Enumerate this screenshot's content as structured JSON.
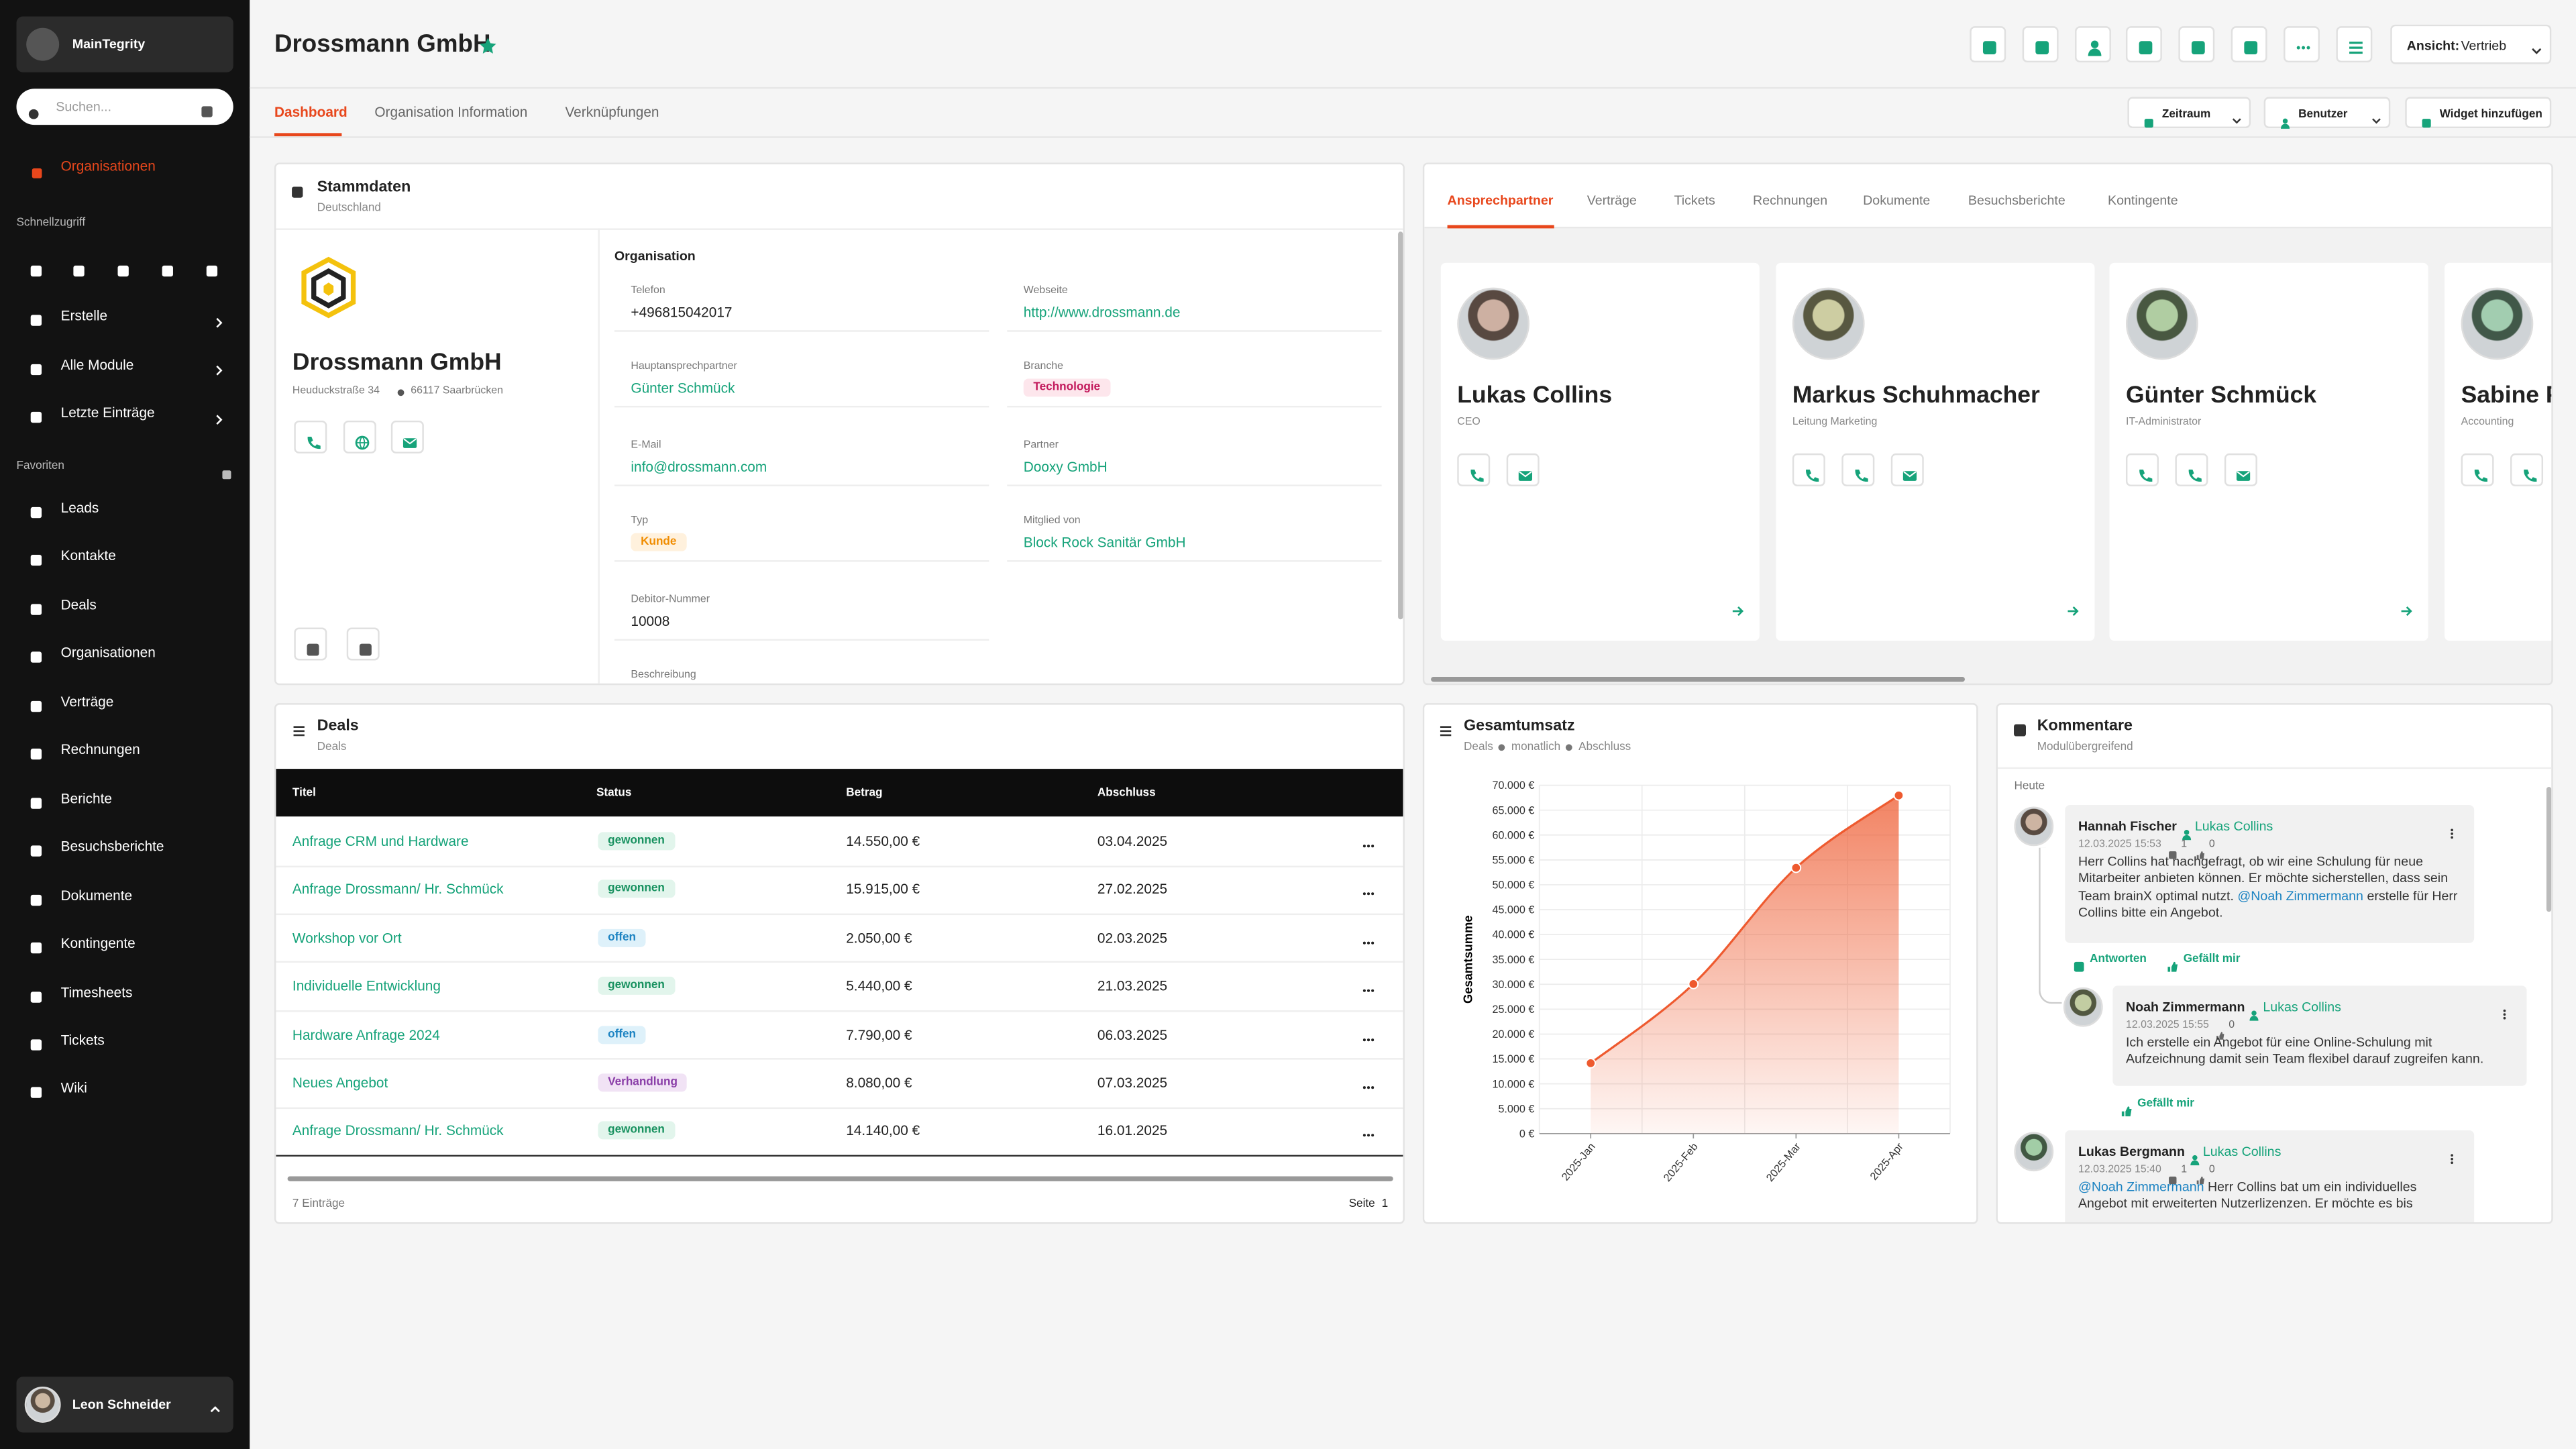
{
  "sidebar": {
    "brand": "MainTegrity",
    "search": "Suchen...",
    "current": "Organisationen",
    "quick_title": "Schnellzugriff",
    "quick_menu": [
      "Erstelle",
      "Alle Module",
      "Letzte Einträge"
    ],
    "favorites_title": "Favoriten",
    "favorites": [
      "Leads",
      "Kontakte",
      "Deals",
      "Organisationen",
      "Verträge",
      "Rechnungen",
      "Berichte",
      "Besuchsberichte",
      "Dokumente",
      "Kontingente",
      "Timesheets",
      "Tickets",
      "Wiki"
    ],
    "user": "Leon Schneider"
  },
  "header": {
    "title": "Drossmann GmbH",
    "view_label": "Ansicht:",
    "view": "Vertrieb",
    "tabs": [
      "Dashboard",
      "Organisation Information",
      "Verknüpfungen"
    ],
    "filters": [
      "Zeitraum",
      "Benutzer",
      "Widget hinzufügen"
    ]
  },
  "stammdaten": {
    "title": "Stammdaten",
    "subtitle": "Deutschland",
    "name": "Drossmann GmbH",
    "street": "Heuduckstraße 34",
    "city": "66117 Saarbrücken",
    "section": "Organisation",
    "fields": [
      {
        "label": "Telefon",
        "value": "+496815042017"
      },
      {
        "label": "Webseite",
        "value": "http://www.drossmann.de"
      },
      {
        "label": "Hauptansprechpartner",
        "value": "Günter Schmück"
      },
      {
        "label": "Branche",
        "value": "Technologie"
      },
      {
        "label": "E-Mail",
        "value": "info@drossmann.com"
      },
      {
        "label": "Partner",
        "value": "Dooxy GmbH"
      },
      {
        "label": "Typ",
        "value": "Kunde"
      },
      {
        "label": "Mitglied von",
        "value": "Block Rock Sanitär GmbH"
      },
      {
        "label": "Debitor-Nummer",
        "value": "10008"
      },
      {
        "label": "Beschreibung"
      }
    ]
  },
  "contacts": {
    "tabs": [
      "Ansprechpartner",
      "Verträge",
      "Tickets",
      "Rechnungen",
      "Dokumente",
      "Besuchsberichte",
      "Kontingente"
    ],
    "people": [
      {
        "name": "Lukas Collins",
        "role": "CEO"
      },
      {
        "name": "Markus Schuhmacher",
        "role": "Leitung Marketing"
      },
      {
        "name": "Günter Schmück",
        "role": "IT-Administrator"
      },
      {
        "name": "Sabine P",
        "role": "Accounting"
      }
    ]
  },
  "deals": {
    "title": "Deals",
    "subtitle": "Deals",
    "columns": [
      "Titel",
      "Status",
      "Betrag",
      "Abschluss"
    ],
    "rows": [
      [
        "Anfrage CRM und Hardware",
        "gewonnen",
        "14.550,00 €",
        "03.04.2025"
      ],
      [
        "Anfrage Drossmann/ Hr. Schmück",
        "gewonnen",
        "15.915,00 €",
        "27.02.2025"
      ],
      [
        "Workshop vor Ort",
        "offen",
        "2.050,00 €",
        "02.03.2025"
      ],
      [
        "Individuelle Entwicklung",
        "gewonnen",
        "5.440,00 €",
        "21.03.2025"
      ],
      [
        "Hardware Anfrage 2024",
        "offen",
        "7.790,00 €",
        "06.03.2025"
      ],
      [
        "Neues Angebot",
        "Verhandlung",
        "8.080,00 €",
        "07.03.2025"
      ],
      [
        "Anfrage Drossmann/ Hr. Schmück",
        "gewonnen",
        "14.140,00 €",
        "16.01.2025"
      ]
    ],
    "count": "7 Einträge",
    "page_label": "Seite",
    "page": 1
  },
  "chart_data": {
    "type": "line",
    "title": "Gesamtumsatz",
    "subtitle": [
      "Deals",
      "monatlich",
      "Abschluss"
    ],
    "ylabel": "Gesamtsumme",
    "categories": [
      "2025-Jan",
      "2025-Feb",
      "2025-Mar",
      "2025-Apr"
    ],
    "values": [
      14140,
      30055,
      53415,
      67965
    ],
    "color": "#ee5a2f",
    "grid": true,
    "ylim": [
      0,
      70000
    ],
    "yticks": [
      {
        "value": 0,
        "label": "0 €"
      },
      {
        "value": 5000,
        "label": "5.000 €"
      },
      {
        "value": 10000,
        "label": "10.000 €"
      },
      {
        "value": 15000,
        "label": "15.000 €"
      },
      {
        "value": 20000,
        "label": "20.000 €"
      },
      {
        "value": 25000,
        "label": "25.000 €"
      },
      {
        "value": 30000,
        "label": "30.000 €"
      },
      {
        "value": 35000,
        "label": "35.000 €"
      },
      {
        "value": 40000,
        "label": "40.000 €"
      },
      {
        "value": 45000,
        "label": "45.000 €"
      },
      {
        "value": 50000,
        "label": "50.000 €"
      },
      {
        "value": 55000,
        "label": "55.000 €"
      },
      {
        "value": 60000,
        "label": "60.000 €"
      },
      {
        "value": 65000,
        "label": "65.000 €"
      },
      {
        "value": 70000,
        "label": "70.000 €"
      }
    ]
  },
  "comments": {
    "title": "Kommentare",
    "subtitle": "Modulübergreifend",
    "day": "Heute",
    "items": [
      {
        "author": "Hannah Fischer",
        "target": "Lukas Collins",
        "time": "12.03.2025 15:53",
        "replies": 1,
        "likes": 0,
        "text": [
          "Herr Collins hat nachgefragt, ob wir eine Schulung für neue Mitarbeiter anbieten können. Er möchte sicherstellen, dass sein Team brainX optimal nutzt.",
          "@Noah Zimmermann",
          "erstelle für Herr Collins bitte ein Angebot."
        ],
        "mention": 1,
        "actions": [
          "Antworten",
          "Gefällt mir"
        ]
      },
      {
        "author": "Noah Zimmermann",
        "target": "Lukas Collins",
        "time": "12.03.2025 15:55",
        "likes": 0,
        "text": [
          "Ich erstelle ein Angebot für eine Online-Schulung mit Aufzeichnung damit sein Team flexibel darauf zugreifen kann."
        ],
        "actions": [
          "Gefällt mir"
        ]
      },
      {
        "author": "Lukas Bergmann",
        "target": "Lukas Collins",
        "time": "12.03.2025 15:40",
        "replies": 1,
        "likes": 0,
        "text": [
          "@Noah Zimmermann",
          "Herr Collins bat um ein individuelles Angebot mit erweiterten Nutzerlizenzen. Er möchte es bis"
        ],
        "mention": 0
      }
    ]
  }
}
